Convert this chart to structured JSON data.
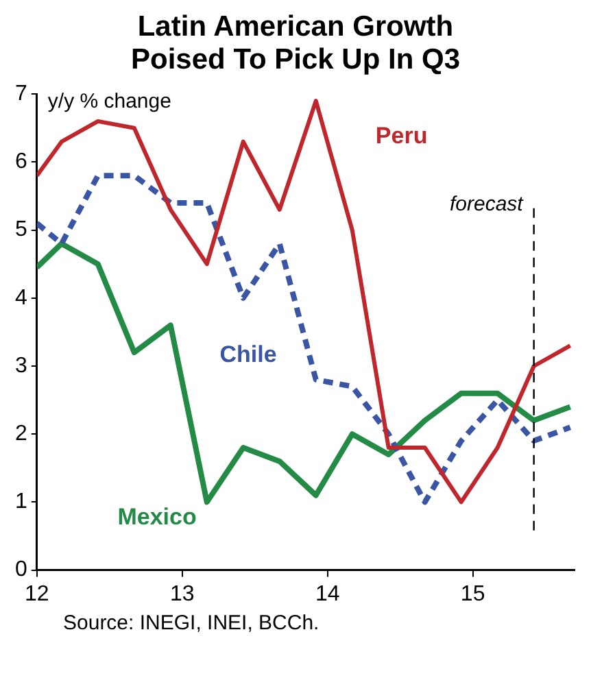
{
  "chart_data": {
    "type": "line",
    "title": "Latin American Growth Poised To Pick Up In Q3",
    "ylabel": "y/y % change",
    "x": [
      12.0,
      12.17,
      12.42,
      12.67,
      12.92,
      13.17,
      13.42,
      13.67,
      13.92,
      14.17,
      14.42,
      14.67,
      14.92,
      15.17,
      15.42,
      15.67
    ],
    "series": [
      {
        "name": "Peru",
        "color": "#c0272d",
        "line_style": "solid",
        "values": [
          5.8,
          6.3,
          6.6,
          6.5,
          5.3,
          4.5,
          6.3,
          5.3,
          6.9,
          5.0,
          1.8,
          1.8,
          1.0,
          1.8,
          3.0,
          3.3
        ]
      },
      {
        "name": "Chile",
        "color": "#3a55a4",
        "line_style": "dashed",
        "values": [
          5.1,
          4.8,
          5.8,
          5.8,
          5.4,
          5.4,
          4.0,
          4.8,
          2.8,
          2.7,
          2.0,
          1.0,
          1.9,
          2.5,
          1.9,
          2.1
        ]
      },
      {
        "name": "Mexico",
        "color": "#238b45",
        "line_style": "solid",
        "values": [
          4.45,
          4.8,
          4.5,
          3.2,
          3.6,
          1.0,
          1.8,
          1.6,
          1.1,
          2.0,
          1.7,
          2.2,
          2.6,
          2.6,
          2.2,
          2.4
        ]
      }
    ],
    "xlim": [
      12,
      15.7
    ],
    "xticks": [
      12,
      13,
      14,
      15
    ],
    "ylim": [
      0,
      7
    ],
    "yticks": [
      0,
      1,
      2,
      3,
      4,
      5,
      6,
      7
    ],
    "ref_lines": [
      {
        "axis": "x",
        "value": 15.42,
        "label": "forecast",
        "color": "#000000",
        "line_style": "dashed"
      }
    ],
    "grid": false,
    "legend": false,
    "marker": "none",
    "annotations": [
      "Source: INEGI, INEI, BCCh."
    ]
  }
}
